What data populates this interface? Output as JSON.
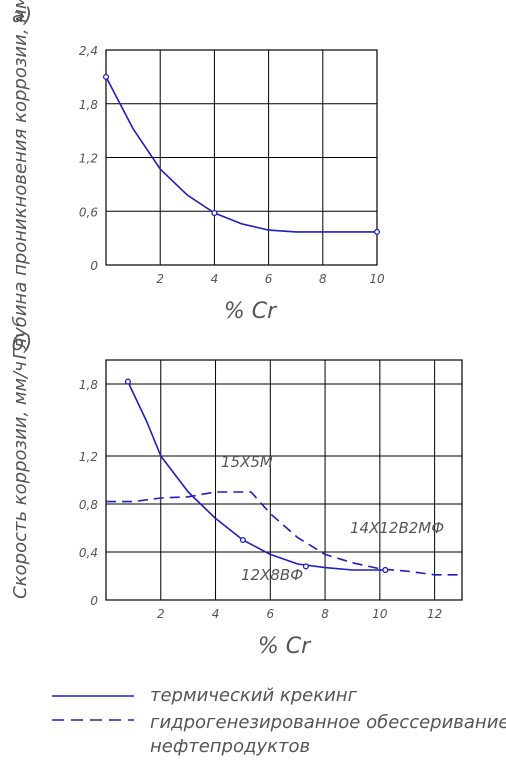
{
  "chart_data": [
    {
      "panel_label": "а)",
      "type": "line",
      "xlabel": "% Cr",
      "ylabel": "Глубина проникновения коррозии, мм/год",
      "xlim": [
        0,
        10
      ],
      "ylim": [
        0,
        2.4
      ],
      "x_ticks": [
        "2",
        "4",
        "6",
        "8",
        "10"
      ],
      "y_ticks": [
        "0",
        "0,6",
        "1,2",
        "1,8",
        "2,4"
      ],
      "grid": true,
      "series": [
        {
          "style": "solid",
          "x": [
            0,
            1,
            2,
            3,
            4,
            5,
            6,
            7,
            8,
            9,
            10
          ],
          "y": [
            2.1,
            1.52,
            1.07,
            0.78,
            0.58,
            0.46,
            0.39,
            0.37,
            0.37,
            0.37,
            0.37
          ],
          "markers": [
            [
              0,
              2.1
            ],
            [
              4,
              0.58
            ],
            [
              10,
              0.37
            ]
          ]
        }
      ]
    },
    {
      "panel_label": "б)",
      "type": "line",
      "xlabel": "% Cr",
      "ylabel": "Скорость коррозии, мм/ч",
      "xlim": [
        0,
        13
      ],
      "ylim": [
        0,
        2.0
      ],
      "x_ticks": [
        "2",
        "4",
        "6",
        "8",
        "10",
        "12"
      ],
      "y_ticks": [
        "0",
        "0,4",
        "0,8",
        "1,2",
        "1,8"
      ],
      "grid": true,
      "annotations": [
        "15Х5М",
        "14Х12В2МФ",
        "12Х8ВФ"
      ],
      "series": [
        {
          "style": "solid",
          "x": [
            0.8,
            1.5,
            2,
            3,
            4,
            5,
            6,
            7,
            8,
            9,
            10.2
          ],
          "y": [
            1.82,
            1.48,
            1.2,
            0.9,
            0.68,
            0.5,
            0.38,
            0.3,
            0.27,
            0.25,
            0.25
          ],
          "markers": [
            [
              0.8,
              1.82
            ],
            [
              5,
              0.5
            ],
            [
              7.3,
              0.28
            ],
            [
              10.2,
              0.25
            ]
          ]
        },
        {
          "style": "dashed",
          "x": [
            0,
            1,
            2,
            3,
            4,
            5,
            5.3,
            6,
            7,
            8,
            9,
            10,
            11,
            12,
            13
          ],
          "y": [
            0.82,
            0.82,
            0.85,
            0.86,
            0.9,
            0.9,
            0.9,
            0.72,
            0.52,
            0.38,
            0.31,
            0.26,
            0.24,
            0.21,
            0.21
          ],
          "markers": [
            [
              10.2,
              0.25
            ]
          ]
        }
      ]
    }
  ],
  "legend": {
    "solid": "термический крекинг",
    "dashed_line1": "гидрогенезированное обессеривание",
    "dashed_line2": "нефтепродуктов"
  }
}
